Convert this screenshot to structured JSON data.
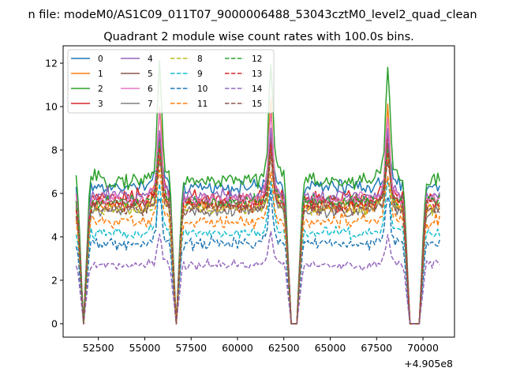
{
  "chart_data": {
    "type": "line",
    "suptitle": "n file: modeM0/AS1C09_011T07_9000006488_53043cztM0_level2_quad_clean",
    "title": "Quadrant 2 module wise count rates with 100.0s bins.",
    "xlabel": "",
    "ylabel": "",
    "x_offset_label": "+4.905e8",
    "xlim": [
      50600,
      71700
    ],
    "ylim": [
      -0.62,
      12.8
    ],
    "x_range": [
      51300,
      70900
    ],
    "xticks": [
      52500,
      55000,
      57500,
      60000,
      62500,
      65000,
      67500,
      70000
    ],
    "xtick_labels": [
      "52500",
      "55000",
      "57500",
      "60000",
      "62500",
      "65000",
      "67500",
      "70000"
    ],
    "yticks": [
      0,
      2,
      4,
      6,
      8,
      10,
      12
    ],
    "ytick_labels": [
      "0",
      "2",
      "4",
      "6",
      "8",
      "10",
      "12"
    ],
    "legend_position": "upper-left",
    "legend_columns": 4,
    "gaps": [
      [
        51700,
        51700
      ],
      [
        56700,
        56700
      ],
      [
        62900,
        63200
      ],
      [
        69300,
        69800
      ]
    ],
    "peaks": [
      55800,
      61800,
      68100
    ],
    "series": [
      {
        "name": "0",
        "color": "#1f77b4",
        "dash": "solid",
        "base": 6.3,
        "peak": 8.5,
        "noise": 0.25
      },
      {
        "name": "1",
        "color": "#ff7f0e",
        "dash": "solid",
        "base": 5.4,
        "peak": 10.2,
        "noise": 0.25
      },
      {
        "name": "2",
        "color": "#2ca02c",
        "dash": "solid",
        "base": 6.6,
        "peak": 12.1,
        "noise": 0.28
      },
      {
        "name": "3",
        "color": "#d62728",
        "dash": "solid",
        "base": 5.8,
        "peak": 8.6,
        "noise": 0.22
      },
      {
        "name": "4",
        "color": "#9467bd",
        "dash": "solid",
        "base": 5.9,
        "peak": 9.0,
        "noise": 0.22
      },
      {
        "name": "5",
        "color": "#8c564b",
        "dash": "solid",
        "base": 5.6,
        "peak": 8.4,
        "noise": 0.22
      },
      {
        "name": "6",
        "color": "#e377c2",
        "dash": "solid",
        "base": 5.7,
        "peak": 9.8,
        "noise": 0.22
      },
      {
        "name": "7",
        "color": "#7f7f7f",
        "dash": "solid",
        "base": 5.2,
        "peak": 8.0,
        "noise": 0.22
      },
      {
        "name": "8",
        "color": "#bcbd22",
        "dash": "dashed",
        "base": 5.3,
        "peak": 7.8,
        "noise": 0.22
      },
      {
        "name": "9",
        "color": "#17becf",
        "dash": "dashed",
        "base": 4.2,
        "peak": 6.6,
        "noise": 0.2
      },
      {
        "name": "10",
        "color": "#1f77b4",
        "dash": "dashed",
        "base": 3.7,
        "peak": 6.0,
        "noise": 0.2
      },
      {
        "name": "11",
        "color": "#ff7f0e",
        "dash": "dashed",
        "base": 4.7,
        "peak": 7.1,
        "noise": 0.22
      },
      {
        "name": "12",
        "color": "#2ca02c",
        "dash": "dashed",
        "base": 5.6,
        "peak": 8.2,
        "noise": 0.22
      },
      {
        "name": "13",
        "color": "#d62728",
        "dash": "dashed",
        "base": 5.5,
        "peak": 8.0,
        "noise": 0.22
      },
      {
        "name": "14",
        "color": "#9467bd",
        "dash": "dashed",
        "base": 2.7,
        "peak": 4.1,
        "noise": 0.15
      },
      {
        "name": "15",
        "color": "#8c564b",
        "dash": "dashed",
        "base": 5.3,
        "peak": 7.6,
        "noise": 0.22
      }
    ]
  }
}
